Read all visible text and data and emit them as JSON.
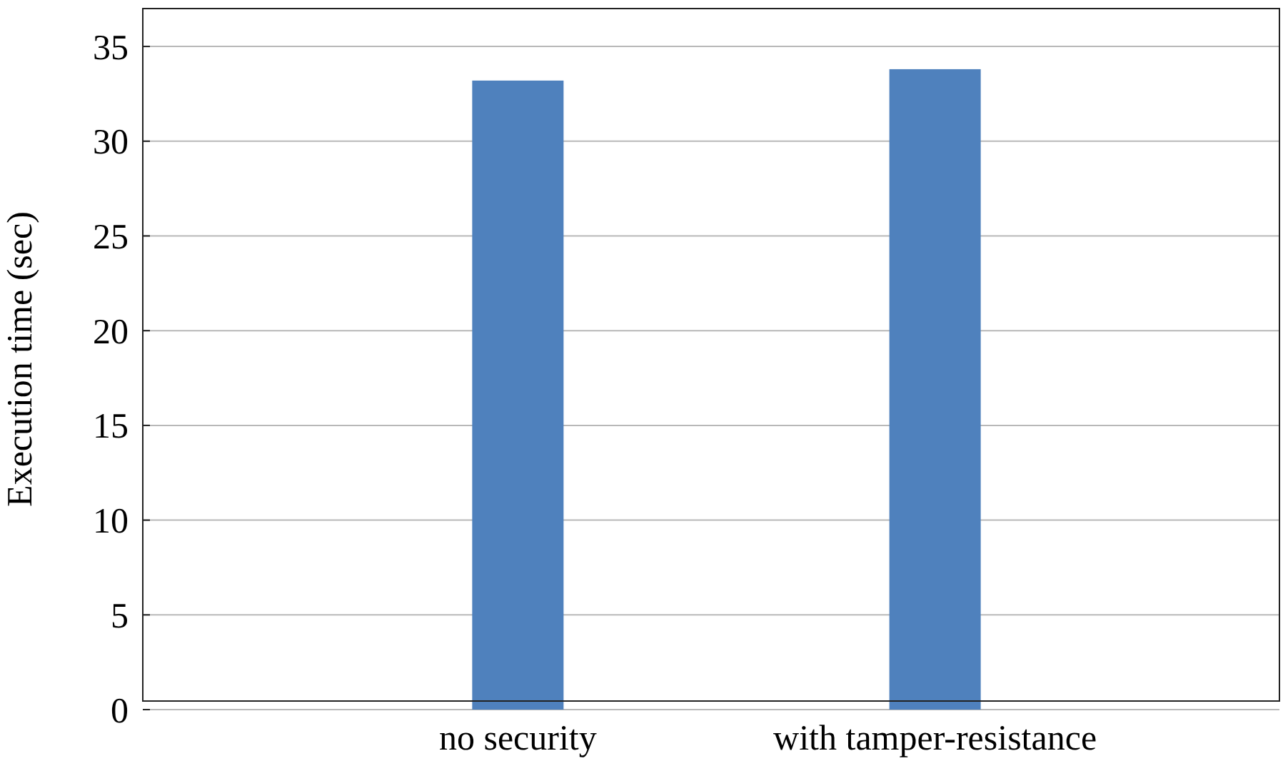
{
  "chart_data": {
    "type": "bar",
    "ylabel": "Execution time (sec)",
    "categories": [
      "no security",
      "with tamper-resistance"
    ],
    "values": [
      33.2,
      33.8
    ],
    "color": "#4f81bd",
    "ylim": [
      0,
      37
    ],
    "yticks": [
      0,
      5,
      10,
      15,
      20,
      25,
      30,
      35
    ],
    "grid": "y"
  }
}
